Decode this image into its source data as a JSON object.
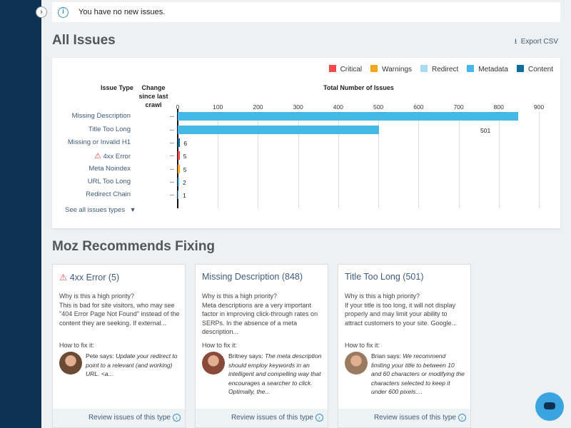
{
  "notice": {
    "text": "You have no new issues."
  },
  "all_issues": {
    "title": "All Issues",
    "export_label": "Export CSV"
  },
  "legend": [
    {
      "label": "Critical",
      "color": "#f04a4a"
    },
    {
      "label": "Warnings",
      "color": "#f5a623"
    },
    {
      "label": "Redirect",
      "color": "#a8dcf0"
    },
    {
      "label": "Metadata",
      "color": "#45b8e8"
    },
    {
      "label": "Content",
      "color": "#0e6c9c"
    }
  ],
  "headers": {
    "issue_type": "Issue Type",
    "change": "Change since last crawl",
    "total": "Total Number of Issues"
  },
  "see_all": "See all issues types",
  "chart_data": {
    "type": "bar",
    "orientation": "horizontal",
    "title": "Total Number of Issues",
    "xlim": [
      0,
      900
    ],
    "ticks": [
      "0",
      "100",
      "200",
      "300",
      "400",
      "500",
      "600",
      "700",
      "800",
      "900"
    ],
    "grid": true,
    "categories": [
      "Missing Description",
      "Title Too Long",
      "Missing or Invalid H1",
      "4xx Error",
      "Meta Noindex",
      "URL Too Long",
      "Redirect Chain"
    ],
    "values": [
      848,
      501,
      6,
      5,
      5,
      2,
      1
    ],
    "value_labels": [
      "",
      "501",
      "6",
      "5",
      "5",
      "2",
      "1"
    ],
    "change": [
      "--",
      "--",
      "--",
      "--",
      "--",
      "--",
      "--"
    ],
    "colors": [
      "#45b8e8",
      "#45b8e8",
      "#0e6c9c",
      "#f04a4a",
      "#f5a623",
      "#45b8e8",
      "#a8dcf0"
    ]
  },
  "recommend": {
    "title": "Moz Recommends Fixing",
    "cards": [
      {
        "title": "4xx Error (5)",
        "warn": true,
        "why_label": "Why is this a high priority?",
        "why": "This is bad for site visitors, who may see \"404 Error Page Not Found\" instead of the content they are seeking. If external...",
        "how_label": "How to fix it:",
        "author": "Pete says:",
        "quote": "Update your redirect to point to a relevant (and working) URL. <a...",
        "link": "Review issues of this type",
        "avatar_color": "#6b4a35"
      },
      {
        "title": "Missing Description (848)",
        "warn": false,
        "why_label": "Why is this a high priority?",
        "why": "Meta descriptions are a very important factor in improving click-through rates on SERPs. In the absence of a meta description...",
        "how_label": "How to fix it:",
        "author": "Britney says:",
        "quote": "The meta description should employ keywords in an intelligent and compelling way that encourages a searcher to click. Optimally, the...",
        "link": "Review issues of this type",
        "avatar_color": "#8a4a3a"
      },
      {
        "title": "Title Too Long (501)",
        "warn": false,
        "why_label": "Why is this a high priority?",
        "why": "If your title is too long, it will not display properly and may limit your ability to attract customers to your site. Google...",
        "how_label": "How to fix it:",
        "author": "Brian says:",
        "quote": "We recommend limiting your title to between 10 and 60 characters or modifying the characters selected to keep it under 600 pixels....",
        "link": "Review issues of this type",
        "avatar_color": "#9a7a60"
      }
    ]
  }
}
